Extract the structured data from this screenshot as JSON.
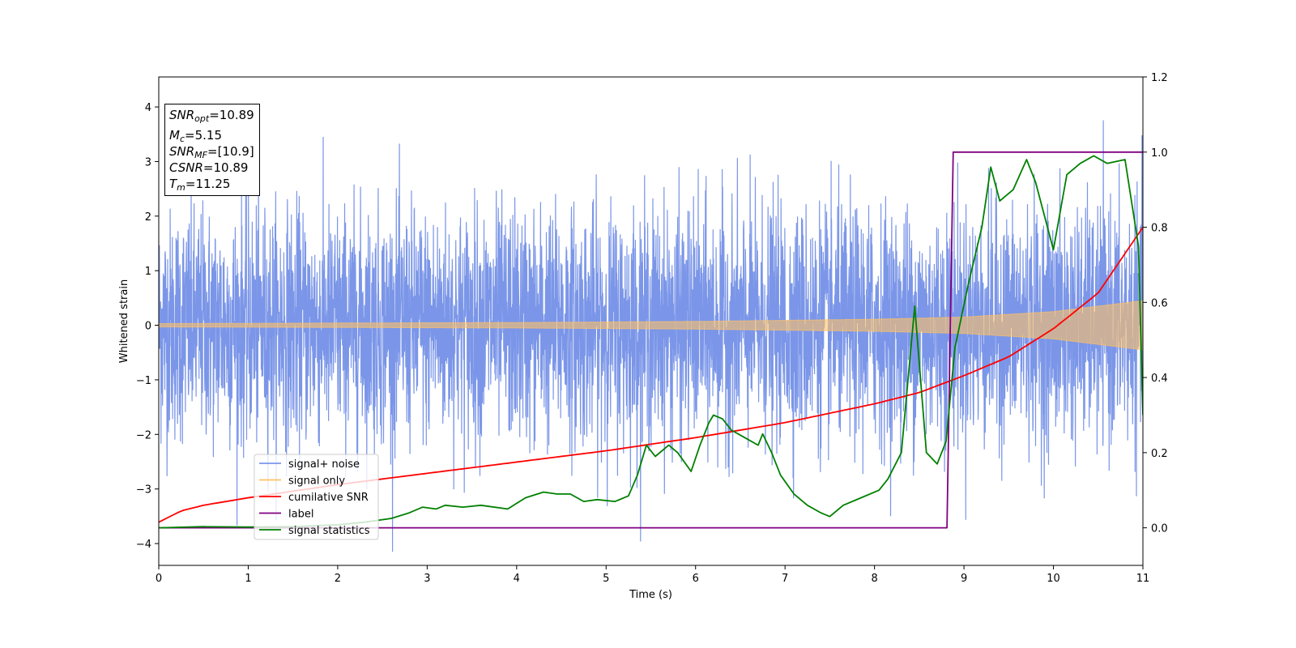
{
  "chart_data": {
    "type": "line",
    "xlabel": "Time (s)",
    "ylabel": "Whitened strain",
    "xlim": [
      0,
      11
    ],
    "ylim": [
      -4.4,
      4.55
    ],
    "y2lim": [
      -0.1,
      1.2
    ],
    "xticks": [
      "0",
      "1",
      "2",
      "3",
      "4",
      "5",
      "6",
      "7",
      "8",
      "9",
      "10",
      "11"
    ],
    "xtick_values": [
      0,
      1,
      2,
      3,
      4,
      5,
      6,
      7,
      8,
      9,
      10,
      11
    ],
    "yticks": [
      "−4",
      "−3",
      "−2",
      "−1",
      "0",
      "1",
      "2",
      "3",
      "4"
    ],
    "ytick_values": [
      -4,
      -3,
      -2,
      -1,
      0,
      1,
      2,
      3,
      4
    ],
    "y2ticks": [
      "0.0",
      "0.2",
      "0.4",
      "0.6",
      "0.8",
      "1.0",
      "1.2"
    ],
    "y2tick_values": [
      0,
      0.2,
      0.4,
      0.6,
      0.8,
      1.0,
      1.2
    ],
    "grid": false,
    "legend_position": "lower-left",
    "annotation": {
      "snr_opt_label": "SNR",
      "snr_opt_sub": "opt",
      "snr_opt_value": "=10.89",
      "mc_label": "M",
      "mc_sub": "c",
      "mc_value": "=5.15",
      "snr_mf_label": "SNR",
      "snr_mf_sub": "MF",
      "snr_mf_value": "=[10.9]",
      "csnr_label": "CSNR",
      "csnr_value": "=10.89",
      "tm_label": "T",
      "tm_sub": "m",
      "tm_value": "=11.25"
    },
    "series": [
      {
        "name": "signal+ noise",
        "color": "#7b96e8",
        "axis": "left",
        "kind": "noise",
        "typical_abs": 1.7,
        "peak": 4.15,
        "envelope_x": [
          0,
          2,
          4,
          6,
          8,
          9,
          10,
          11
        ],
        "envelope_amp": [
          0.03,
          0.04,
          0.05,
          0.07,
          0.11,
          0.15,
          0.25,
          0.45
        ]
      },
      {
        "name": "signal only",
        "color": "#ffc165",
        "axis": "left",
        "kind": "chirp",
        "envelope_x": [
          0,
          2,
          4,
          6,
          8,
          9,
          10,
          11
        ],
        "envelope_amp": [
          0.03,
          0.04,
          0.05,
          0.07,
          0.11,
          0.15,
          0.25,
          0.45
        ]
      },
      {
        "name": "cumilative SNR",
        "color": "#ff0000",
        "axis": "right",
        "x": [
          0,
          0.25,
          0.5,
          1,
          2,
          3,
          4,
          5,
          6,
          7,
          8,
          8.5,
          9,
          9.5,
          10,
          10.5,
          11
        ],
        "y": [
          0.015,
          0.045,
          0.06,
          0.08,
          0.115,
          0.145,
          0.175,
          0.205,
          0.24,
          0.28,
          0.33,
          0.36,
          0.405,
          0.455,
          0.53,
          0.625,
          0.8
        ]
      },
      {
        "name": "label",
        "color": "#800080",
        "axis": "right",
        "x": [
          0,
          8.81,
          8.88,
          11
        ],
        "y": [
          0.0,
          0.0,
          1.0,
          1.0
        ]
      },
      {
        "name": "signal statistics",
        "color": "#008000",
        "axis": "right",
        "x": [
          0,
          0.5,
          1,
          1.5,
          2,
          2.3,
          2.6,
          2.8,
          2.95,
          3.1,
          3.2,
          3.4,
          3.6,
          3.9,
          4.1,
          4.3,
          4.45,
          4.6,
          4.75,
          4.9,
          5.1,
          5.25,
          5.35,
          5.45,
          5.55,
          5.7,
          5.8,
          5.95,
          6.05,
          6.15,
          6.2,
          6.3,
          6.4,
          6.55,
          6.7,
          6.75,
          6.85,
          6.95,
          7.1,
          7.25,
          7.4,
          7.5,
          7.65,
          7.85,
          8.05,
          8.15,
          8.3,
          8.45,
          8.58,
          8.7,
          8.8,
          8.9,
          9.05,
          9.2,
          9.3,
          9.4,
          9.55,
          9.7,
          9.8,
          10.0,
          10.15,
          10.3,
          10.45,
          10.6,
          10.8,
          10.95,
          11
        ],
        "y": [
          0.0,
          0.003,
          0.002,
          0.003,
          0.008,
          0.015,
          0.025,
          0.04,
          0.055,
          0.05,
          0.06,
          0.055,
          0.06,
          0.05,
          0.08,
          0.095,
          0.09,
          0.09,
          0.07,
          0.075,
          0.07,
          0.085,
          0.14,
          0.22,
          0.19,
          0.22,
          0.2,
          0.15,
          0.22,
          0.28,
          0.3,
          0.29,
          0.26,
          0.24,
          0.22,
          0.25,
          0.2,
          0.14,
          0.09,
          0.06,
          0.04,
          0.03,
          0.06,
          0.08,
          0.1,
          0.13,
          0.2,
          0.59,
          0.2,
          0.17,
          0.23,
          0.48,
          0.65,
          0.8,
          0.96,
          0.87,
          0.9,
          0.98,
          0.92,
          0.74,
          0.94,
          0.97,
          0.99,
          0.97,
          0.98,
          0.75,
          0.3
        ]
      }
    ]
  }
}
